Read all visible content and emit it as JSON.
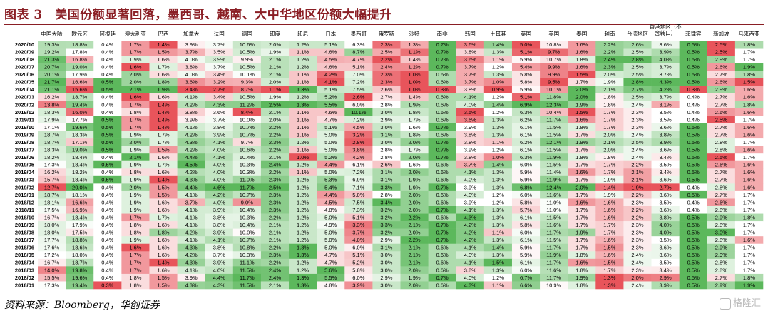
{
  "page": {
    "title": "图表 3　美国份额显著回落，墨西哥、越南、大中华地区份额大幅提升",
    "source": "资料来源：Bloomberg，华创证券",
    "watermark": "格隆汇"
  },
  "chart_data": {
    "type": "heatmap",
    "title": "",
    "value_suffix": "%",
    "color_scale": "per-column: green = high share, red = low share, white = middle",
    "colors": {
      "low": "#e8545b",
      "mid": "#ffffff",
      "high": "#5cb85c"
    },
    "columns": [
      "中国大陆",
      "欧元区",
      "阿根廷",
      "澳大利亚",
      "巴西",
      "加拿大",
      "法国",
      "德国",
      "印度",
      "印尼",
      "日本",
      "墨西哥",
      "俄罗斯",
      "沙特",
      "南非",
      "韩国",
      "土耳其",
      "英国",
      "美国",
      "泰国",
      "越南",
      "台湾地区",
      "香港地区（不含转口）",
      "菲律宾",
      "新加坡",
      "马来西亚"
    ],
    "rows": [
      "2020/10",
      "2020/09",
      "2020/08",
      "2020/07",
      "2020/06",
      "2020/05",
      "2020/04",
      "2020/03",
      "2020/02",
      "2019/12",
      "2019/11",
      "2019/10",
      "2019/09",
      "2019/08",
      "2019/07",
      "2019/06",
      "2019/05",
      "2019/04",
      "2019/03",
      "2019/02",
      "2019/01",
      "2018/12",
      "2018/11",
      "2018/10",
      "2018/09",
      "2018/08",
      "2018/07",
      "2018/06",
      "2018/05",
      "2018/04",
      "2018/03",
      "2018/02",
      "2018/01"
    ],
    "values": [
      [
        19.3,
        18.8,
        0.4,
        1.7,
        1.4,
        3.9,
        3.7,
        10.6,
        2.0,
        1.2,
        5.1,
        6.3,
        2.3,
        1.3,
        0.7,
        3.6,
        1.4,
        5.0,
        10.8,
        1.6,
        2.2,
        2.6,
        3.6,
        0.5,
        2.5,
        1.8
      ],
      [
        19.2,
        17.8,
        0.4,
        1.7,
        1.5,
        3.7,
        3.5,
        10.5,
        1.9,
        1.1,
        4.6,
        8.7,
        2.5,
        1.1,
        0.7,
        3.8,
        1.3,
        5.1,
        9.7,
        1.6,
        2.2,
        2.5,
        3.9,
        0.5,
        2.5,
        1.7
      ],
      [
        21.3,
        16.8,
        0.4,
        1.9,
        1.6,
        4.0,
        3.9,
        9.9,
        2.1,
        1.2,
        4.5,
        4.7,
        2.2,
        1.4,
        0.7,
        3.6,
        1.1,
        5.9,
        10.7,
        1.8,
        2.4,
        2.8,
        4.0,
        0.5,
        2.9,
        1.7
      ],
      [
        20.7,
        19.0,
        0.4,
        1.6,
        1.7,
        3.8,
        3.7,
        10.5,
        2.1,
        1.2,
        4.6,
        5.1,
        2.4,
        1.2,
        0.7,
        3.7,
        1.2,
        5.4,
        9.9,
        1.6,
        2.3,
        2.5,
        3.7,
        0.5,
        2.6,
        1.9
      ],
      [
        20.1,
        17.9,
        0.4,
        2.0,
        1.6,
        4.0,
        3.4,
        10.1,
        2.1,
        1.1,
        4.2,
        7.0,
        2.3,
        1.0,
        0.6,
        3.7,
        1.3,
        5.8,
        9.9,
        1.5,
        2.0,
        2.5,
        3.7,
        0.5,
        2.7,
        1.8
      ],
      [
        21.7,
        16.6,
        0.5,
        2.0,
        1.8,
        3.6,
        3.2,
        9.3,
        2.0,
        1.1,
        4.1,
        7.2,
        2.3,
        1.0,
        0.6,
        3.7,
        1.0,
        5.8,
        9.5,
        1.7,
        1.9,
        2.8,
        4.3,
        0.5,
        2.6,
        1.5
      ],
      [
        21.1,
        15.6,
        0.5,
        2.1,
        1.9,
        3.4,
        2.7,
        8.7,
        1.1,
        1.3,
        5.1,
        7.5,
        2.6,
        1.0,
        0.3,
        3.8,
        0.9,
        5.9,
        10.1,
        2.0,
        2.1,
        2.7,
        4.2,
        0.3,
        2.9,
        1.6
      ],
      [
        16.2,
        18.7,
        0.4,
        1.6,
        1.6,
        4.1,
        3.4,
        10.5,
        1.9,
        1.2,
        5.2,
        2.6,
        2.7,
        1.4,
        0.6,
        4.1,
        1.2,
        5.1,
        11.8,
        2.0,
        1.8,
        2.5,
        3.7,
        0.4,
        2.7,
        1.6
      ],
      [
        13.8,
        19.4,
        0.4,
        1.7,
        1.4,
        4.2,
        4.3,
        11.2,
        2.5,
        1.3,
        5.5,
        6.0,
        2.8,
        1.9,
        0.6,
        4.0,
        1.4,
        6.9,
        12.3,
        1.9,
        1.8,
        2.4,
        3.1,
        0.4,
        2.7,
        1.8
      ],
      [
        18.3,
        16.0,
        0.4,
        1.8,
        1.4,
        3.8,
        3.6,
        8.4,
        2.1,
        1.1,
        4.6,
        10.1,
        3.0,
        1.8,
        0.6,
        3.5,
        1.2,
        6.3,
        10.4,
        1.5,
        1.7,
        2.3,
        3.5,
        0.4,
        2.6,
        1.6
      ],
      [
        17.9,
        17.7,
        0.5,
        1.7,
        1.4,
        3.9,
        3.7,
        10.0,
        2.0,
        1.1,
        4.7,
        7.2,
        2.9,
        1.7,
        0.6,
        3.6,
        1.3,
        6.2,
        11.7,
        1.6,
        1.7,
        2.3,
        3.5,
        0.4,
        2.5,
        1.7
      ],
      [
        17.1,
        19.6,
        0.5,
        1.7,
        1.4,
        4.1,
        3.8,
        10.7,
        2.2,
        1.1,
        5.1,
        4.5,
        3.0,
        1.6,
        0.7,
        3.9,
        1.3,
        6.1,
        11.5,
        1.8,
        1.7,
        2.3,
        3.6,
        0.5,
        2.7,
        1.6
      ],
      [
        18.7,
        18.3,
        0.5,
        1.9,
        1.7,
        4.2,
        3.9,
        10.7,
        2.2,
        1.1,
        5.0,
        3.2,
        3.1,
        1.8,
        0.6,
        3.8,
        1.3,
        6.1,
        11.5,
        1.7,
        2.0,
        2.4,
        3.8,
        0.5,
        2.7,
        1.6
      ],
      [
        18.7,
        17.1,
        0.5,
        2.0,
        1.7,
        4.3,
        4.1,
        9.7,
        2.3,
        1.2,
        5.0,
        2.8,
        3.0,
        2.0,
        0.7,
        3.8,
        1.1,
        6.2,
        12.1,
        1.9,
        2.1,
        2.5,
        3.9,
        0.5,
        2.8,
        1.7
      ],
      [
        18.3,
        19.0,
        0.5,
        1.9,
        1.5,
        4.2,
        4.0,
        10.6,
        2.2,
        1.1,
        5.0,
        3.8,
        2.8,
        1.7,
        0.7,
        3.9,
        1.2,
        6.1,
        11.5,
        1.7,
        2.0,
        2.4,
        3.6,
        0.5,
        2.8,
        1.6
      ],
      [
        18.2,
        18.4,
        0.4,
        2.1,
        1.6,
        4.4,
        4.1,
        10.4,
        2.1,
        1.0,
        5.2,
        4.2,
        2.8,
        2.0,
        0.7,
        3.8,
        1.0,
        6.3,
        11.9,
        1.8,
        1.8,
        2.4,
        3.4,
        0.5,
        2.5,
        1.7
      ],
      [
        17.3,
        18.4,
        0.5,
        1.9,
        1.7,
        4.5,
        4.0,
        10.3,
        2.4,
        1.2,
        4.4,
        6.1,
        2.6,
        1.6,
        0.6,
        3.7,
        1.4,
        6.0,
        11.5,
        1.7,
        1.7,
        2.2,
        3.5,
        0.5,
        2.6,
        1.6
      ],
      [
        16.2,
        18.2,
        0.4,
        1.8,
        1.6,
        4.2,
        4.0,
        10.3,
        2.2,
        1.1,
        5.0,
        7.2,
        3.1,
        2.0,
        0.6,
        4.1,
        1.3,
        5.9,
        11.4,
        1.6,
        1.7,
        2.1,
        3.4,
        0.5,
        2.7,
        1.6
      ],
      [
        15.7,
        18.4,
        0.5,
        1.9,
        1.4,
        4.3,
        4.0,
        11.0,
        2.3,
        1.2,
        5.3,
        6.9,
        3.1,
        1.9,
        0.6,
        4.0,
        1.3,
        5.9,
        11.9,
        1.7,
        1.9,
        2.1,
        3.6,
        0.5,
        2.7,
        1.6
      ],
      [
        12.7,
        20.0,
        0.4,
        2.0,
        1.5,
        4.4,
        4.6,
        11.7,
        2.5,
        1.2,
        5.4,
        7.1,
        3.3,
        1.9,
        0.7,
        3.9,
        1.3,
        6.8,
        12.4,
        2.0,
        1.4,
        1.9,
        2.7,
        0.4,
        2.8,
        1.6
      ],
      [
        18.7,
        18.1,
        0.4,
        1.9,
        1.5,
        4.1,
        4.2,
        10.7,
        2.3,
        1.2,
        4.4,
        5.0,
        2.8,
        2.0,
        0.6,
        4.0,
        1.2,
        6.0,
        11.6,
        1.7,
        1.9,
        2.2,
        3.6,
        0.5,
        2.7,
        1.7
      ],
      [
        18.1,
        16.6,
        0.4,
        1.9,
        1.6,
        3.7,
        4.0,
        9.0,
        2.3,
        1.2,
        4.5,
        7.5,
        3.4,
        2.0,
        0.6,
        3.9,
        1.2,
        5.8,
        11.0,
        1.6,
        1.6,
        2.3,
        3.5,
        0.4,
        2.6,
        1.7
      ],
      [
        17.5,
        16.9,
        0.4,
        1.9,
        1.6,
        4.1,
        3.9,
        10.4,
        2.3,
        1.2,
        4.8,
        7.3,
        3.2,
        2.0,
        0.7,
        4.1,
        1.3,
        5.7,
        11.0,
        1.7,
        1.6,
        2.2,
        3.6,
        0.4,
        2.8,
        1.7
      ],
      [
        16.7,
        18.4,
        0.4,
        1.7,
        1.7,
        4.1,
        3.8,
        10.3,
        2.2,
        1.2,
        5.0,
        5.1,
        3.2,
        2.2,
        0.6,
        4.3,
        1.3,
        6.1,
        11.5,
        1.7,
        1.6,
        2.2,
        3.8,
        0.5,
        2.9,
        1.8
      ],
      [
        18.0,
        17.9,
        0.4,
        1.8,
        1.6,
        4.1,
        3.8,
        10.4,
        2.1,
        1.2,
        4.9,
        3.3,
        3.3,
        2.1,
        0.7,
        4.2,
        1.3,
        5.8,
        11.6,
        1.7,
        1.7,
        2.3,
        4.0,
        0.5,
        2.8,
        1.7
      ],
      [
        18.0,
        17.5,
        0.4,
        1.8,
        1.8,
        4.2,
        3.9,
        10.0,
        2.1,
        1.2,
        5.0,
        3.7,
        3.2,
        2.0,
        0.7,
        4.2,
        1.1,
        6.0,
        11.7,
        1.9,
        1.7,
        2.3,
        4.0,
        0.5,
        3.0,
        1.7
      ],
      [
        17.7,
        18.8,
        0.4,
        1.9,
        1.6,
        4.1,
        4.1,
        10.7,
        2.1,
        1.2,
        5.0,
        4.0,
        2.9,
        2.2,
        0.7,
        4.2,
        1.3,
        6.1,
        11.5,
        1.7,
        1.6,
        2.3,
        3.5,
        0.5,
        2.8,
        1.6
      ],
      [
        17.6,
        18.6,
        0.4,
        1.6,
        1.6,
        4.3,
        3.8,
        10.8,
        2.2,
        1.3,
        5.0,
        6.0,
        3.1,
        2.1,
        0.6,
        4.1,
        1.4,
        5.9,
        11.7,
        1.7,
        1.5,
        2.3,
        3.6,
        0.5,
        2.9,
        1.7
      ],
      [
        17.2,
        18.0,
        0.4,
        1.7,
        1.6,
        4.2,
        3.7,
        10.3,
        2.3,
        1.3,
        4.7,
        5.1,
        3.0,
        2.1,
        0.6,
        4.0,
        1.3,
        5.9,
        11.9,
        1.8,
        1.6,
        2.4,
        3.6,
        0.5,
        2.9,
        1.7
      ],
      [
        16.7,
        18.7,
        0.4,
        1.7,
        1.4,
        4.3,
        3.9,
        11.1,
        2.2,
        1.2,
        4.7,
        5.2,
        3.0,
        2.1,
        0.6,
        4.1,
        1.5,
        6.1,
        11.7,
        1.6,
        1.5,
        2.4,
        3.5,
        0.5,
        2.8,
        1.7
      ],
      [
        14.0,
        19.8,
        0.4,
        1.7,
        1.6,
        4.1,
        4.0,
        11.5,
        2.4,
        1.2,
        5.6,
        5.8,
        3.0,
        2.0,
        0.6,
        3.8,
        1.3,
        6.0,
        11.6,
        1.8,
        1.7,
        2.3,
        3.4,
        0.5,
        2.8,
        1.7
      ],
      [
        15.5,
        19.6,
        0.4,
        1.8,
        1.5,
        3.9,
        4.4,
        11.7,
        2.4,
        1.3,
        5.5,
        6.0,
        2.9,
        1.9,
        0.7,
        4.0,
        1.2,
        6.7,
        11.7,
        1.9,
        1.3,
        2.0,
        2.9,
        0.5,
        2.7,
        1.8
      ],
      [
        17.3,
        19.4,
        0.3,
        1.8,
        1.5,
        4.3,
        4.3,
        11.5,
        2.1,
        1.3,
        4.8,
        3.9,
        3.0,
        2.0,
        0.6,
        4.3,
        1.1,
        6.6,
        10.9,
        1.8,
        1.3,
        2.4,
        3.9,
        0.5,
        2.9,
        1.9
      ]
    ]
  }
}
